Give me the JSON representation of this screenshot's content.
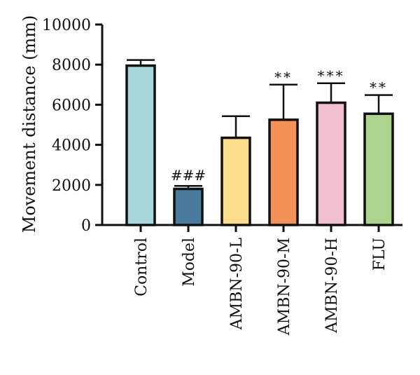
{
  "chart_data": {
    "type": "bar",
    "ylabel": "Movement distance (mm)",
    "ylim": [
      0,
      10000
    ],
    "yticks": [
      "0",
      "2000",
      "4000",
      "6000",
      "8000",
      "10000"
    ],
    "grid": false,
    "categories": [
      "Control",
      "Model",
      "AMBN-90-L",
      "AMBN-90-M",
      "AMBN-90-H",
      "FLU"
    ],
    "values": [
      7950,
      1800,
      4350,
      5250,
      6100,
      5550
    ],
    "errors": [
      280,
      150,
      1080,
      1750,
      970,
      930
    ],
    "annotations": [
      "",
      "###",
      "",
      "**",
      "***",
      "**"
    ],
    "colors": [
      "#a8d8dc",
      "#4a7b9d",
      "#f9dd8c",
      "#f4925a",
      "#f2bfd0",
      "#acd48e"
    ]
  }
}
